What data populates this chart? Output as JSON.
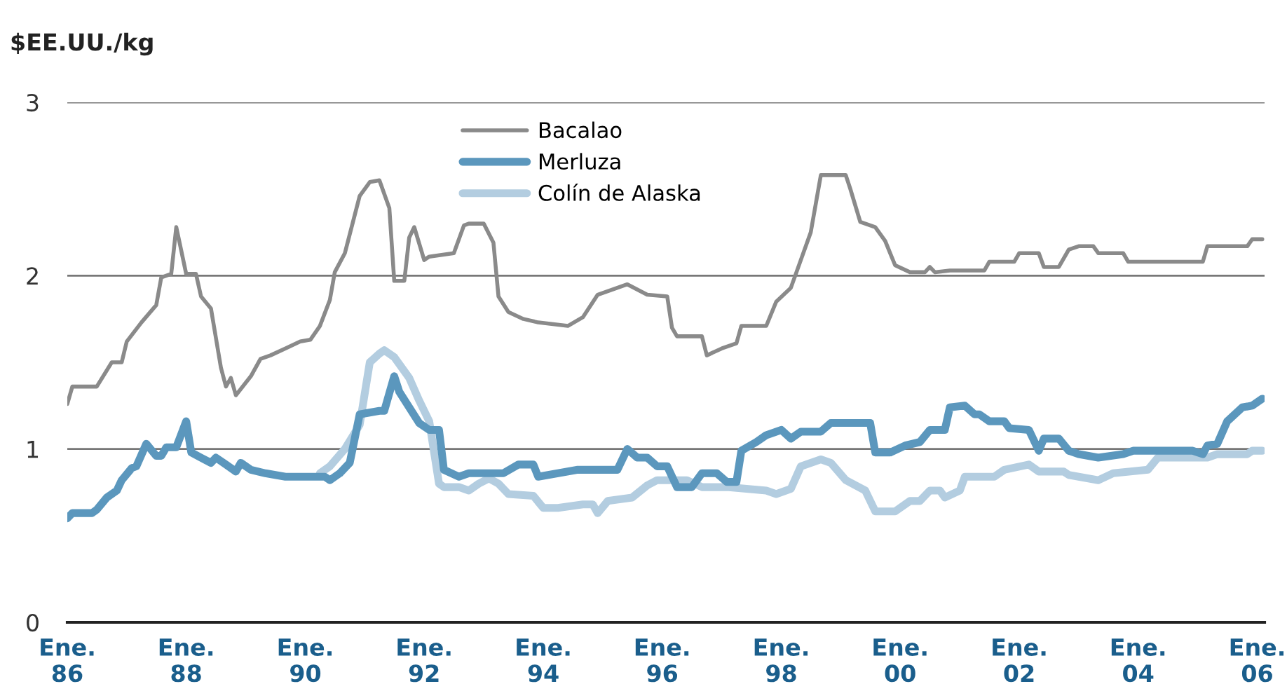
{
  "chart_data": {
    "type": "line",
    "ylabel": "$EE.UU./kg",
    "xlim": [
      "1986-01-01",
      "2006-02-15"
    ],
    "ylim": [
      0,
      3
    ],
    "yticks": [
      0,
      1,
      2,
      3
    ],
    "xticks": [
      {
        "value": "1986-01",
        "label": "Ene.\n86"
      },
      {
        "value": "1988-01",
        "label": "Ene.\n88"
      },
      {
        "value": "1990-01",
        "label": "Ene.\n90"
      },
      {
        "value": "1992-01",
        "label": "Ene.\n92"
      },
      {
        "value": "1994-01",
        "label": "Ene.\n94"
      },
      {
        "value": "1996-01",
        "label": "Ene.\n96"
      },
      {
        "value": "1998-01",
        "label": "Ene.\n98"
      },
      {
        "value": "2000-01",
        "label": "Ene.\n00"
      },
      {
        "value": "2002-01",
        "label": "Ene.\n02"
      },
      {
        "value": "2004-01",
        "label": "Ene.\n04"
      },
      {
        "value": "2006-01",
        "label": "Ene.\n06"
      }
    ],
    "grid": "y",
    "legend": "top",
    "line_style": "solid",
    "marker": "none",
    "series": [
      {
        "name": "Bacalao",
        "color": "#8a8a8a",
        "x": [
          "1986-01",
          "1986-02",
          "1986-07",
          "1986-10",
          "1986-12",
          "1987-01",
          "1987-04",
          "1987-07",
          "1987-08",
          "1987-10",
          "1987-11",
          "1988-01",
          "1988-03",
          "1988-04",
          "1988-06",
          "1988-08",
          "1988-09",
          "1988-10",
          "1988-11",
          "1989-02",
          "1989-04",
          "1989-06",
          "1989-09",
          "1989-12",
          "1990-02",
          "1990-04",
          "1990-06",
          "1990-07",
          "1990-09",
          "1990-12",
          "1991-02",
          "1991-04",
          "1991-06",
          "1991-07",
          "1991-09",
          "1991-10",
          "1991-11",
          "1992-01",
          "1992-02",
          "1992-07",
          "1992-09",
          "1992-10",
          "1993-01",
          "1993-03",
          "1993-04",
          "1993-06",
          "1993-09",
          "1993-12",
          "1994-06",
          "1994-09",
          "1994-12",
          "1995-06",
          "1995-10",
          "1996-02",
          "1996-03",
          "1996-04",
          "1996-09",
          "1996-10",
          "1997-01",
          "1997-04",
          "1997-05",
          "1997-10",
          "1997-12",
          "1998-03",
          "1998-05",
          "1998-07",
          "1998-09",
          "1999-02",
          "1999-03",
          "1999-05",
          "1999-08",
          "1999-10",
          "1999-12",
          "2000-03",
          "2000-06",
          "2000-07",
          "2000-08",
          "2000-11",
          "2001-06",
          "2001-07",
          "2001-12",
          "2002-01",
          "2002-05",
          "2002-06",
          "2002-09",
          "2002-11",
          "2003-01",
          "2003-04",
          "2003-05",
          "2003-10",
          "2003-11",
          "2005-02",
          "2005-03",
          "2005-11",
          "2005-12",
          "2006-02"
        ],
        "values": [
          1.26,
          1.36,
          1.36,
          1.5,
          1.5,
          1.62,
          1.73,
          1.83,
          1.99,
          2.01,
          2.28,
          2.01,
          2.01,
          1.88,
          1.81,
          1.47,
          1.36,
          1.41,
          1.31,
          1.42,
          1.52,
          1.54,
          1.58,
          1.62,
          1.63,
          1.71,
          1.86,
          2.02,
          2.13,
          2.46,
          2.54,
          2.55,
          2.39,
          1.97,
          1.97,
          2.22,
          2.28,
          2.09,
          2.11,
          2.13,
          2.29,
          2.3,
          2.3,
          2.19,
          1.88,
          1.79,
          1.75,
          1.73,
          1.71,
          1.76,
          1.89,
          1.95,
          1.89,
          1.88,
          1.7,
          1.65,
          1.65,
          1.54,
          1.58,
          1.61,
          1.71,
          1.71,
          1.85,
          1.93,
          2.09,
          2.25,
          2.58,
          2.58,
          2.5,
          2.31,
          2.28,
          2.2,
          2.06,
          2.02,
          2.02,
          2.05,
          2.02,
          2.03,
          2.03,
          2.08,
          2.08,
          2.13,
          2.13,
          2.05,
          2.05,
          2.15,
          2.17,
          2.17,
          2.13,
          2.13,
          2.08,
          2.08,
          2.17,
          2.17,
          2.21,
          2.21
        ]
      },
      {
        "name": "Merluza",
        "color": "#5b97bd",
        "x": [
          "1986-01",
          "1986-02",
          "1986-06",
          "1986-07",
          "1986-09",
          "1986-11",
          "1986-12",
          "1987-02",
          "1987-03",
          "1987-05",
          "1987-07",
          "1987-08",
          "1987-09",
          "1987-11",
          "1988-01",
          "1988-02",
          "1988-04",
          "1988-06",
          "1988-07",
          "1988-09",
          "1988-11",
          "1988-12",
          "1989-02",
          "1989-05",
          "1989-07",
          "1989-09",
          "1990-05",
          "1990-06",
          "1990-08",
          "1990-10",
          "1990-12",
          "1991-04",
          "1991-05",
          "1991-07",
          "1991-08",
          "1991-10",
          "1991-12",
          "1992-02",
          "1992-04",
          "1992-05",
          "1992-08",
          "1992-10",
          "1993-05",
          "1993-08",
          "1993-11",
          "1993-12",
          "1994-08",
          "1995-04",
          "1995-06",
          "1995-08",
          "1995-10",
          "1995-12",
          "1996-02",
          "1996-04",
          "1996-07",
          "1996-09",
          "1996-12",
          "1997-02",
          "1997-04",
          "1997-05",
          "1997-08",
          "1997-10",
          "1998-01",
          "1998-03",
          "1998-05",
          "1998-09",
          "1998-11",
          "1999-07",
          "1999-08",
          "1999-11",
          "2000-02",
          "2000-05",
          "2000-07",
          "2000-10",
          "2000-11",
          "2001-02",
          "2001-04",
          "2001-05",
          "2001-07",
          "2001-10",
          "2001-11",
          "2002-03",
          "2002-05",
          "2002-06",
          "2002-09",
          "2002-11",
          "2003-01",
          "2003-05",
          "2003-10",
          "2003-12",
          "2004-12",
          "2005-02",
          "2005-03",
          "2005-05",
          "2005-07",
          "2005-10",
          "2005-12",
          "2006-02"
        ],
        "values": [
          0.6,
          0.63,
          0.63,
          0.65,
          0.72,
          0.76,
          0.82,
          0.89,
          0.9,
          1.03,
          0.96,
          0.96,
          1.01,
          1.01,
          1.16,
          0.98,
          0.95,
          0.92,
          0.95,
          0.91,
          0.87,
          0.92,
          0.88,
          0.86,
          0.85,
          0.84,
          0.84,
          0.82,
          0.86,
          0.92,
          1.2,
          1.22,
          1.22,
          1.42,
          1.33,
          1.24,
          1.15,
          1.11,
          1.11,
          0.88,
          0.84,
          0.86,
          0.86,
          0.91,
          0.91,
          0.84,
          0.88,
          0.88,
          1.0,
          0.95,
          0.95,
          0.9,
          0.9,
          0.78,
          0.78,
          0.86,
          0.86,
          0.81,
          0.81,
          0.99,
          1.04,
          1.08,
          1.11,
          1.06,
          1.1,
          1.1,
          1.15,
          1.15,
          0.98,
          0.98,
          1.02,
          1.04,
          1.11,
          1.11,
          1.24,
          1.25,
          1.2,
          1.2,
          1.16,
          1.16,
          1.12,
          1.11,
          0.99,
          1.06,
          1.06,
          0.99,
          0.97,
          0.95,
          0.97,
          0.99,
          0.99,
          0.97,
          1.02,
          1.03,
          1.16,
          1.24,
          1.25,
          1.29
        ]
      },
      {
        "name": "Colín de Alaska",
        "color": "#b3cde0",
        "x": [
          "1990-04",
          "1990-06",
          "1990-09",
          "1990-12",
          "1991-02",
          "1991-04",
          "1991-05",
          "1991-07",
          "1991-10",
          "1991-12",
          "1992-02",
          "1992-04",
          "1992-05",
          "1992-08",
          "1992-10",
          "1992-12",
          "1993-02",
          "1993-04",
          "1993-06",
          "1993-11",
          "1994-01",
          "1994-04",
          "1994-09",
          "1994-11",
          "1994-12",
          "1995-02",
          "1995-07",
          "1995-10",
          "1995-12",
          "1996-06",
          "1996-09",
          "1997-02",
          "1997-10",
          "1997-12",
          "1998-03",
          "1998-05",
          "1998-09",
          "1998-11",
          "1999-02",
          "1999-06",
          "1999-08",
          "1999-12",
          "2000-03",
          "2000-05",
          "2000-07",
          "2000-09",
          "2000-10",
          "2001-01",
          "2001-02",
          "2001-08",
          "2001-10",
          "2002-03",
          "2002-05",
          "2002-10",
          "2002-11",
          "2003-05",
          "2003-08",
          "2004-03",
          "2004-05",
          "2005-03",
          "2005-05",
          "2005-11",
          "2005-12",
          "2006-02"
        ],
        "values": [
          0.86,
          0.9,
          1.0,
          1.14,
          1.5,
          1.55,
          1.57,
          1.53,
          1.41,
          1.28,
          1.16,
          0.8,
          0.78,
          0.78,
          0.76,
          0.8,
          0.83,
          0.8,
          0.74,
          0.73,
          0.66,
          0.66,
          0.68,
          0.68,
          0.63,
          0.7,
          0.72,
          0.79,
          0.82,
          0.82,
          0.78,
          0.78,
          0.76,
          0.74,
          0.77,
          0.9,
          0.94,
          0.92,
          0.82,
          0.76,
          0.64,
          0.64,
          0.7,
          0.7,
          0.76,
          0.76,
          0.72,
          0.76,
          0.84,
          0.84,
          0.88,
          0.91,
          0.87,
          0.87,
          0.85,
          0.82,
          0.86,
          0.88,
          0.95,
          0.95,
          0.97,
          0.97,
          0.99,
          0.99
        ]
      }
    ]
  }
}
